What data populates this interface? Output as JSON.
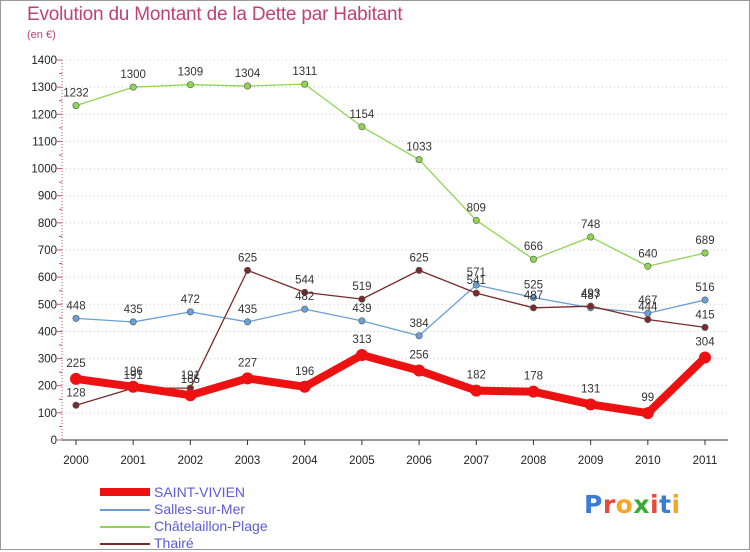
{
  "header": {
    "title": "Evolution du Montant de la Dette par Habitant",
    "subtitle": "(en €)"
  },
  "logo": {
    "text": "Proxiti",
    "colors": [
      "#3a7bd5",
      "#e84a3c",
      "#f5a623",
      "#3aaa35",
      "#e84a3c",
      "#3a7bd5",
      "#f5a623"
    ]
  },
  "chart_data": {
    "type": "line",
    "title": "Evolution du Montant de la Dette par Habitant",
    "subtitle": "(en €)",
    "x": [
      "2000",
      "2001",
      "2002",
      "2003",
      "2004",
      "2005",
      "2006",
      "2007",
      "2008",
      "2009",
      "2010",
      "2011"
    ],
    "ylim": [
      0,
      1400
    ],
    "yticks": [
      0,
      100,
      200,
      300,
      400,
      500,
      600,
      700,
      800,
      900,
      1000,
      1100,
      1200,
      1300,
      1400
    ],
    "grid": "horizontal dotted",
    "legend_position": "bottom-left",
    "series": [
      {
        "name": "SAINT-VIVIEN",
        "color": "#ee1111",
        "width": 8,
        "values": [
          225,
          196,
          165,
          227,
          196,
          313,
          256,
          182,
          178,
          131,
          99,
          304
        ]
      },
      {
        "name": "Salles-sur-Mer",
        "color": "#6aa0d6",
        "width": 1.3,
        "values": [
          448,
          435,
          472,
          435,
          482,
          439,
          384,
          571,
          525,
          487,
          467,
          516
        ]
      },
      {
        "name": "Châtelaillon-Plage",
        "color": "#8fd650",
        "width": 1.3,
        "values": [
          1232,
          1300,
          1309,
          1304,
          1311,
          1154,
          1033,
          809,
          666,
          748,
          640,
          689
        ]
      },
      {
        "name": "Thairé",
        "color": "#7a2a2a",
        "width": 1.3,
        "values": [
          128,
          191,
          191,
          625,
          544,
          519,
          625,
          541,
          487,
          493,
          444,
          415
        ]
      }
    ]
  }
}
